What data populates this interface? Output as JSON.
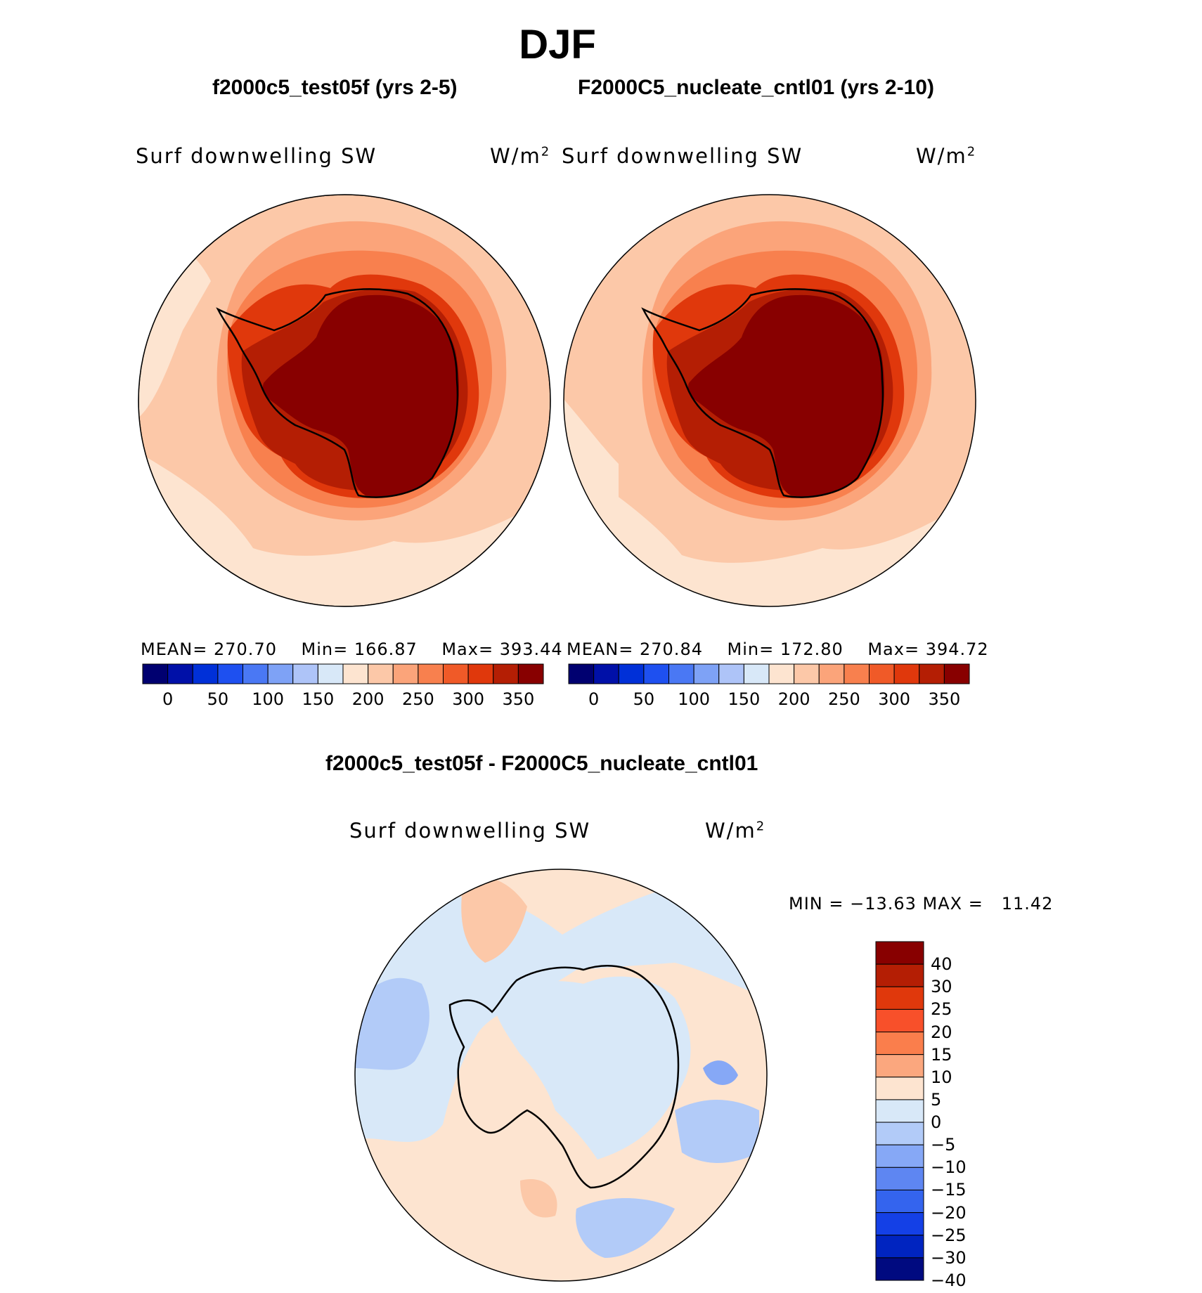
{
  "season": "DJF",
  "panels": [
    {
      "case_title": "f2000c5_test05f (yrs 2-5)",
      "field": "Surf downwelling SW",
      "units": "W/m",
      "units_sup": "2",
      "stats": {
        "mean_label": "MEAN=",
        "mean": "270.70",
        "min_label": "Min=",
        "min": "166.87",
        "max_label": "Max=",
        "max": "393.44"
      }
    },
    {
      "case_title": "F2000C5_nucleate_cntl01 (yrs 2-10)",
      "field": "Surf downwelling SW",
      "units": "W/m",
      "units_sup": "2",
      "stats": {
        "mean_label": "MEAN=",
        "mean": "270.84",
        "min_label": "Min=",
        "min": "172.80",
        "max_label": "Max=",
        "max": "394.72"
      }
    }
  ],
  "abs_colorbar": {
    "colors": [
      "#000070",
      "#0010a8",
      "#0030d8",
      "#1e50f0",
      "#4a78f4",
      "#7ea2f6",
      "#aec4f8",
      "#d8e8f8",
      "#fde4d0",
      "#fcc8a8",
      "#fba47a",
      "#f8804e",
      "#f05a28",
      "#e0380c",
      "#b41e04",
      "#880000"
    ],
    "ticks": [
      "0",
      "50",
      "100",
      "150",
      "200",
      "250",
      "300",
      "350"
    ]
  },
  "difference": {
    "title": "f2000c5_test05f - F2000C5_nucleate_cntl01",
    "field": "Surf downwelling SW",
    "units": "W/m",
    "units_sup": "2",
    "minmax": "MIN = −13.63 MAX =   11.42",
    "colorbar": {
      "colors": [
        "#880000",
        "#b41e04",
        "#e0380c",
        "#f8502a",
        "#fa7e4c",
        "#fba77e",
        "#fde4d0",
        "#d8e8f8",
        "#b2cbf8",
        "#86a8f6",
        "#5e86f2",
        "#3464ee",
        "#1440e6",
        "#0024c0",
        "#000a80"
      ],
      "ticks": [
        "40",
        "30",
        "25",
        "20",
        "15",
        "10",
        "5",
        "0",
        "−5",
        "−10",
        "−15",
        "−20",
        "−25",
        "−30",
        "−40"
      ]
    }
  },
  "map_colors": {
    "ocean_outer": "#fde4d0",
    "ocean_mid": "#fcc8a8",
    "ring1": "#fba47a",
    "ring2": "#f8804e",
    "ring3": "#e0380c",
    "ring4": "#b41e04",
    "interior": "#880000",
    "diff_base": "#fde4d0",
    "diff_neg": "#d8e8f8",
    "diff_neg2": "#b2cbf8",
    "diff_neg3": "#86a8f6",
    "diff_pos": "#fcc8a8"
  }
}
